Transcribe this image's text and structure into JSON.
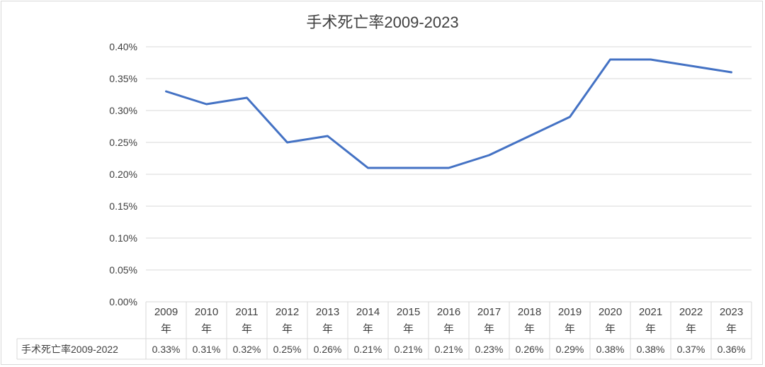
{
  "chart_data": {
    "type": "line",
    "title": "手术死亡率2009-2023",
    "categories": [
      "2009年",
      "2010年",
      "2011年",
      "2012年",
      "2013年",
      "2014年",
      "2015年",
      "2016年",
      "2017年",
      "2018年",
      "2019年",
      "2020年",
      "2021年",
      "2022年",
      "2023年"
    ],
    "category_lines": [
      [
        "2009",
        "年"
      ],
      [
        "2010",
        "年"
      ],
      [
        "2011",
        "年"
      ],
      [
        "2012",
        "年"
      ],
      [
        "2013",
        "年"
      ],
      [
        "2014",
        "年"
      ],
      [
        "2015",
        "年"
      ],
      [
        "2016",
        "年"
      ],
      [
        "2017",
        "年"
      ],
      [
        "2018",
        "年"
      ],
      [
        "2019",
        "年"
      ],
      [
        "2020",
        "年"
      ],
      [
        "2021",
        "年"
      ],
      [
        "2022",
        "年"
      ],
      [
        "2023",
        "年"
      ]
    ],
    "series": [
      {
        "name": "手术死亡率2009-2022",
        "values": [
          0.33,
          0.31,
          0.32,
          0.25,
          0.26,
          0.21,
          0.21,
          0.21,
          0.23,
          0.26,
          0.29,
          0.38,
          0.38,
          0.37,
          0.36
        ],
        "value_labels": [
          "0.33%",
          "0.31%",
          "0.32%",
          "0.25%",
          "0.26%",
          "0.21%",
          "0.21%",
          "0.21%",
          "0.23%",
          "0.26%",
          "0.29%",
          "0.38%",
          "0.38%",
          "0.37%",
          "0.36%"
        ],
        "color": "#4472c4"
      }
    ],
    "y_ticks": [
      "0.00%",
      "0.05%",
      "0.10%",
      "0.15%",
      "0.20%",
      "0.25%",
      "0.30%",
      "0.35%",
      "0.40%"
    ],
    "ylim": [
      0,
      0.4
    ],
    "grid": true,
    "data_table": true,
    "colors": {
      "line": "#4472c4",
      "grid": "#d9d9d9",
      "text": "#404040"
    }
  }
}
